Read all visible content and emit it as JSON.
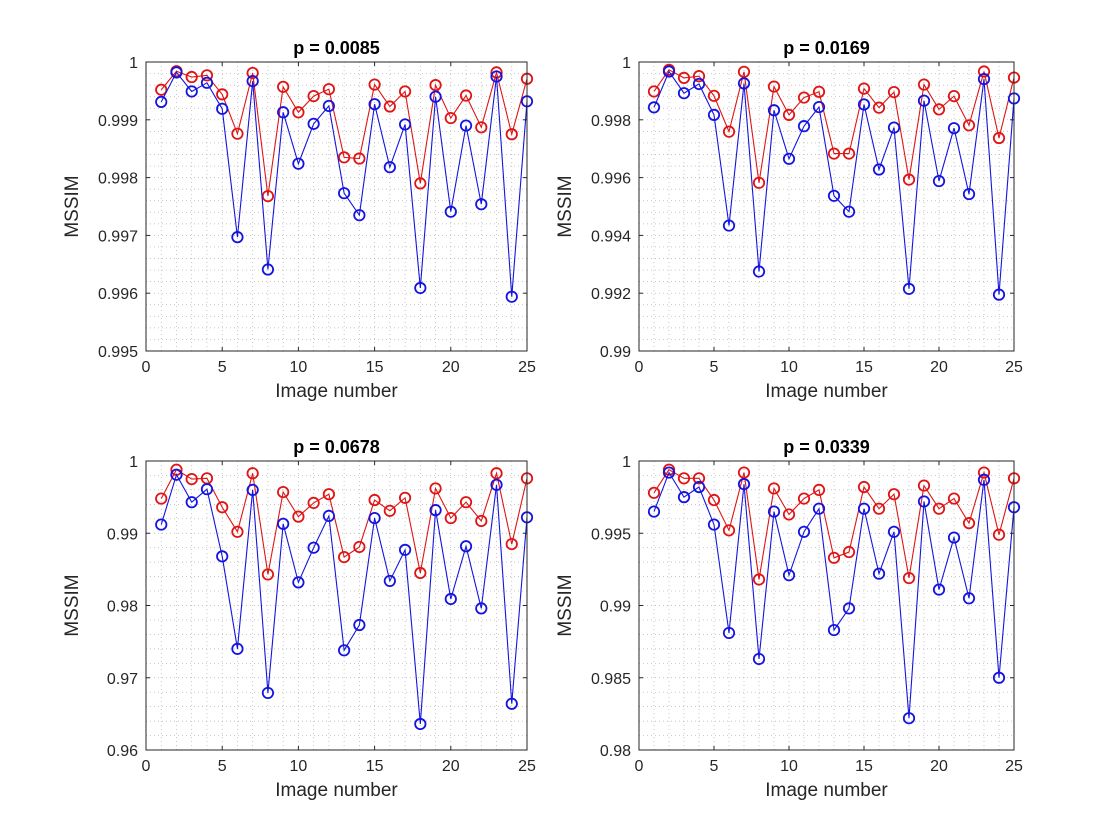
{
  "chart_data": [
    {
      "type": "line",
      "title": "p = 0.0085",
      "xlabel": "Image number",
      "ylabel": "MSSIM",
      "xlim": [
        0,
        25
      ],
      "ylim": [
        0.995,
        1
      ],
      "xticks": [
        0,
        5,
        10,
        15,
        20,
        25
      ],
      "xtick_labels": [
        "0",
        "5",
        "10",
        "15",
        "20",
        "25"
      ],
      "yticks": [
        0.995,
        0.996,
        0.997,
        0.998,
        0.999,
        1
      ],
      "ytick_labels": [
        "0.995",
        "0.996",
        "0.997",
        "0.998",
        "0.999",
        "1"
      ],
      "grid": "on, minor dotted",
      "x": [
        1,
        2,
        3,
        4,
        5,
        6,
        7,
        8,
        9,
        10,
        11,
        12,
        13,
        14,
        15,
        16,
        17,
        18,
        19,
        20,
        21,
        22,
        23,
        24,
        25
      ],
      "series": [
        {
          "color": "#e01414",
          "marker": "circle",
          "values": [
            0.99952,
            0.99984,
            0.99974,
            0.99977,
            0.99944,
            0.99876,
            0.99981,
            0.99768,
            0.99957,
            0.99913,
            0.99941,
            0.99953,
            0.99835,
            0.99833,
            0.99961,
            0.99923,
            0.99949,
            0.9979,
            0.9996,
            0.99903,
            0.99942,
            0.99887,
            0.99982,
            0.99875,
            0.99971
          ]
        },
        {
          "color": "#1414e0",
          "marker": "circle",
          "values": [
            0.99931,
            0.99982,
            0.99949,
            0.99964,
            0.99919,
            0.99697,
            0.99967,
            0.99641,
            0.99913,
            0.99824,
            0.99893,
            0.99924,
            0.99773,
            0.99735,
            0.99927,
            0.99818,
            0.99892,
            0.99609,
            0.9994,
            0.99741,
            0.9989,
            0.99754,
            0.99975,
            0.99594,
            0.99932
          ]
        }
      ]
    },
    {
      "type": "line",
      "title": "p = 0.0169",
      "xlabel": "Image number",
      "ylabel": "MSSIM",
      "xlim": [
        0,
        25
      ],
      "ylim": [
        0.99,
        1
      ],
      "xticks": [
        0,
        5,
        10,
        15,
        20,
        25
      ],
      "xtick_labels": [
        "0",
        "5",
        "10",
        "15",
        "20",
        "25"
      ],
      "yticks": [
        0.99,
        0.992,
        0.994,
        0.996,
        0.998,
        1
      ],
      "ytick_labels": [
        "0.99",
        "0.992",
        "0.994",
        "0.996",
        "0.998",
        "1"
      ],
      "grid": "on, minor dotted",
      "x": [
        1,
        2,
        3,
        4,
        5,
        6,
        7,
        8,
        9,
        10,
        11,
        12,
        13,
        14,
        15,
        16,
        17,
        18,
        19,
        20,
        21,
        22,
        23,
        24,
        25
      ],
      "series": [
        {
          "color": "#e01414",
          "marker": "circle",
          "values": [
            0.99898,
            0.99973,
            0.99945,
            0.99951,
            0.99883,
            0.99759,
            0.99966,
            0.99582,
            0.99915,
            0.99817,
            0.99877,
            0.99897,
            0.99683,
            0.99683,
            0.99908,
            0.99842,
            0.99896,
            0.99593,
            0.99922,
            0.99836,
            0.99882,
            0.99781,
            0.99967,
            0.99737,
            0.99946
          ]
        },
        {
          "color": "#1414e0",
          "marker": "circle",
          "values": [
            0.99843,
            0.99967,
            0.99892,
            0.99924,
            0.99817,
            0.99434,
            0.99926,
            0.99275,
            0.99833,
            0.99665,
            0.99778,
            0.99844,
            0.99537,
            0.99482,
            0.99853,
            0.99628,
            0.99773,
            0.99215,
            0.99866,
            0.99588,
            0.99771,
            0.99543,
            0.99941,
            0.99195,
            0.99874
          ]
        }
      ]
    },
    {
      "type": "line",
      "title": "p = 0.0678",
      "xlabel": "Image number",
      "ylabel": "MSSIM",
      "xlim": [
        0,
        25
      ],
      "ylim": [
        0.96,
        1
      ],
      "xticks": [
        0,
        5,
        10,
        15,
        20,
        25
      ],
      "xtick_labels": [
        "0",
        "5",
        "10",
        "15",
        "20",
        "25"
      ],
      "yticks": [
        0.96,
        0.97,
        0.98,
        0.99,
        1
      ],
      "ytick_labels": [
        "0.96",
        "0.97",
        "0.98",
        "0.99",
        "1"
      ],
      "grid": "on, minor dotted",
      "x": [
        1,
        2,
        3,
        4,
        5,
        6,
        7,
        8,
        9,
        10,
        11,
        12,
        13,
        14,
        15,
        16,
        17,
        18,
        19,
        20,
        21,
        22,
        23,
        24,
        25
      ],
      "series": [
        {
          "color": "#e01414",
          "marker": "circle",
          "values": [
            0.9948,
            0.9988,
            0.9975,
            0.9976,
            0.9936,
            0.9902,
            0.9983,
            0.9843,
            0.9957,
            0.9923,
            0.9942,
            0.9954,
            0.9867,
            0.9881,
            0.9946,
            0.9931,
            0.9949,
            0.9845,
            0.9962,
            0.9921,
            0.9943,
            0.9917,
            0.9983,
            0.9885,
            0.9976
          ]
        },
        {
          "color": "#1414e0",
          "marker": "circle",
          "values": [
            0.9912,
            0.9981,
            0.9943,
            0.9961,
            0.9868,
            0.974,
            0.996,
            0.9679,
            0.9913,
            0.9832,
            0.988,
            0.9924,
            0.9738,
            0.9773,
            0.9921,
            0.9834,
            0.9877,
            0.9636,
            0.9932,
            0.9809,
            0.9882,
            0.9796,
            0.9967,
            0.9664,
            0.9922
          ]
        }
      ]
    },
    {
      "type": "line",
      "title": "p = 0.0339",
      "xlabel": "Image number",
      "ylabel": "MSSIM",
      "xlim": [
        0,
        25
      ],
      "ylim": [
        0.98,
        1
      ],
      "xticks": [
        0,
        5,
        10,
        15,
        20,
        25
      ],
      "xtick_labels": [
        "0",
        "5",
        "10",
        "15",
        "20",
        "25"
      ],
      "yticks": [
        0.98,
        0.985,
        0.99,
        0.995,
        1
      ],
      "ytick_labels": [
        "0.98",
        "0.985",
        "0.99",
        "0.995",
        "1"
      ],
      "grid": "on, minor dotted",
      "x": [
        1,
        2,
        3,
        4,
        5,
        6,
        7,
        8,
        9,
        10,
        11,
        12,
        13,
        14,
        15,
        16,
        17,
        18,
        19,
        20,
        21,
        22,
        23,
        24,
        25
      ],
      "series": [
        {
          "color": "#e01414",
          "marker": "circle",
          "values": [
            0.9978,
            0.9994,
            0.9988,
            0.9988,
            0.9973,
            0.9952,
            0.9992,
            0.9918,
            0.9981,
            0.9963,
            0.9974,
            0.998,
            0.9933,
            0.9937,
            0.9982,
            0.9967,
            0.9977,
            0.9919,
            0.9983,
            0.9967,
            0.9974,
            0.9957,
            0.9992,
            0.9949,
            0.9988
          ]
        },
        {
          "color": "#1414e0",
          "marker": "circle",
          "values": [
            0.9965,
            0.9992,
            0.9975,
            0.9982,
            0.9956,
            0.9881,
            0.9984,
            0.9863,
            0.9965,
            0.9921,
            0.9951,
            0.9967,
            0.9883,
            0.9898,
            0.9967,
            0.9922,
            0.9951,
            0.9822,
            0.9972,
            0.9911,
            0.9947,
            0.9905,
            0.9987,
            0.985,
            0.9968
          ]
        }
      ]
    }
  ]
}
